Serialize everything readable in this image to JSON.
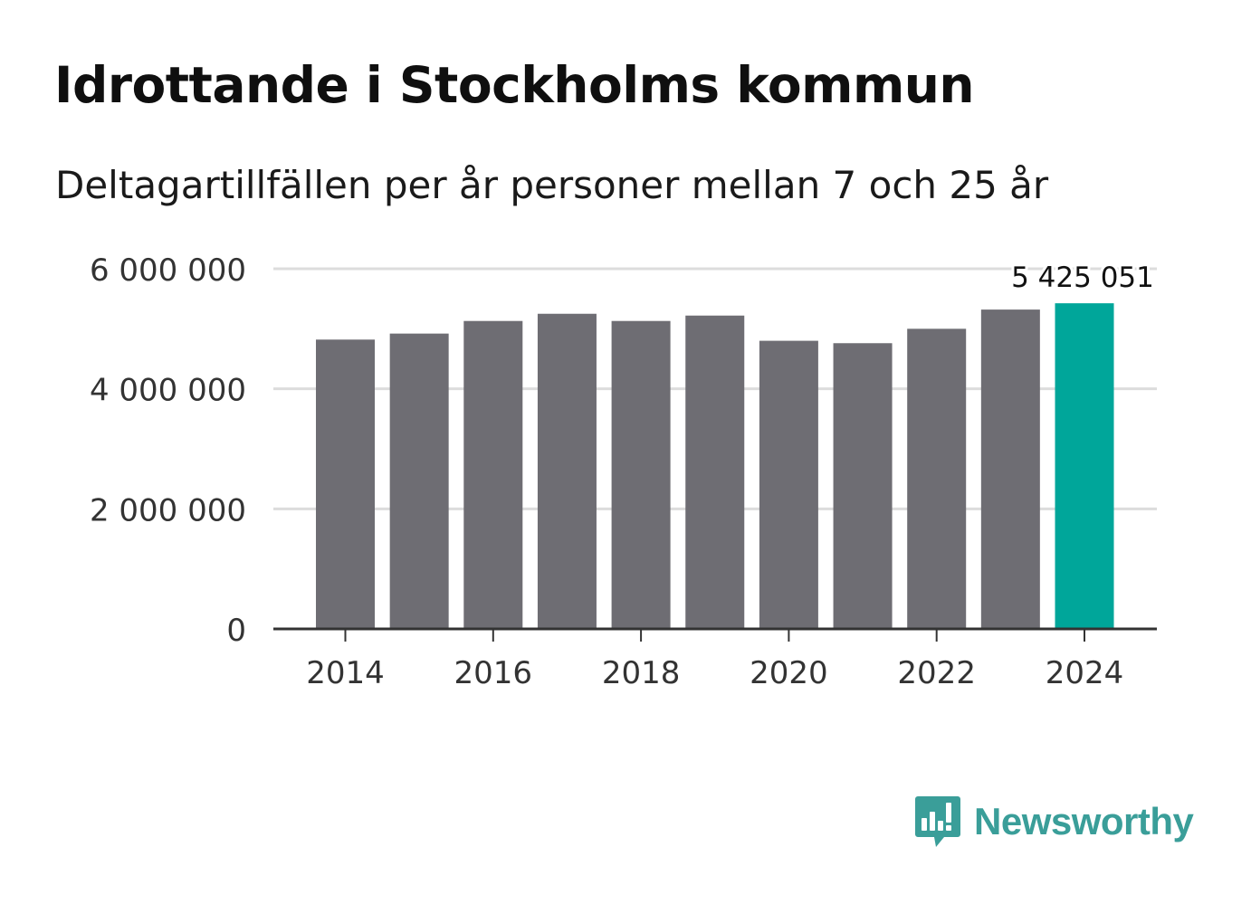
{
  "header": {
    "title": "Idrottande i Stockholms kommun",
    "subtitle": "Deltagartillfällen per år personer mellan 7 och 25 år"
  },
  "brand": {
    "name": "Newsworthy"
  },
  "colors": {
    "bar_default": "#6e6d73",
    "bar_highlight": "#00a69a",
    "grid": "#dcdcdc",
    "axis": "#333333",
    "tick_text": "#333333",
    "brand": "#3a9e99"
  },
  "chart_data": {
    "type": "bar",
    "title": "Idrottande i Stockholms kommun",
    "subtitle": "Deltagartillfällen per år personer mellan 7 och 25 år",
    "xlabel": "",
    "ylabel": "",
    "categories": [
      2014,
      2015,
      2016,
      2017,
      2018,
      2019,
      2020,
      2021,
      2022,
      2023,
      2024
    ],
    "values": [
      4820000,
      4920000,
      5130000,
      5250000,
      5130000,
      5220000,
      4800000,
      4760000,
      5000000,
      5320000,
      5425051
    ],
    "highlight_index": 10,
    "data_labels": [
      {
        "index": 10,
        "text": "5 425 051"
      }
    ],
    "ylim": [
      0,
      6000000
    ],
    "y_ticks": [
      0,
      2000000,
      4000000,
      6000000
    ],
    "y_tick_labels": [
      "0",
      "2 000 000",
      "4 000 000",
      "6 000 000"
    ],
    "x_ticks": [
      2014,
      2016,
      2018,
      2020,
      2022,
      2024
    ],
    "x_tick_labels": [
      "2014",
      "2016",
      "2018",
      "2020",
      "2022",
      "2024"
    ],
    "grid": true,
    "legend": "none"
  }
}
